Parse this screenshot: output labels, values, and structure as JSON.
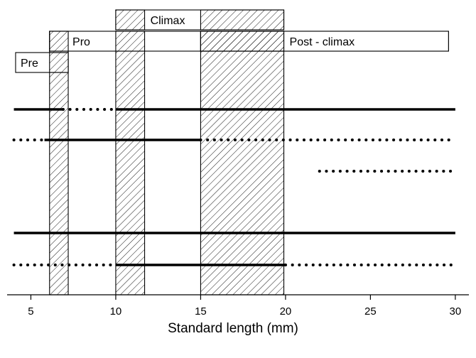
{
  "chart_data": {
    "type": "timeline",
    "xlabel": "Standard length (mm)",
    "xlim": [
      3.6,
      30.8
    ],
    "x_ticks": [
      5,
      10,
      15,
      20,
      25,
      30
    ],
    "x_tick_labels": [
      "5",
      "10",
      "15",
      "20",
      "25",
      "30"
    ],
    "grid": false,
    "phases": [
      {
        "label": "Pre",
        "box_start": 4.1,
        "box_end": 7.2,
        "row": 3
      },
      {
        "label": "Pro",
        "box_start": 6.1,
        "box_end": 29.6,
        "row": 2,
        "label_end": 10.0
      },
      {
        "label": "Climax",
        "box_start": 10.0,
        "box_end": 19.9,
        "row": 1,
        "label_end": 15.0
      },
      {
        "label": "Post - climax",
        "box_start": 15.0,
        "box_end": 29.6,
        "row": 2
      }
    ],
    "transition_bands": [
      {
        "from": 6.1,
        "to": 7.2
      },
      {
        "from": 10.0,
        "to": 11.7
      },
      {
        "from": 15.0,
        "to": 19.9
      }
    ],
    "rows": [
      {
        "segments": [
          {
            "from": 4.0,
            "to": 6.9,
            "style": "solid"
          },
          {
            "from": 6.9,
            "to": 10.0,
            "style": "dotted"
          },
          {
            "from": 10.0,
            "to": 30.0,
            "style": "solid"
          }
        ]
      },
      {
        "segments": [
          {
            "from": 4.0,
            "to": 5.8,
            "style": "dotted"
          },
          {
            "from": 5.8,
            "to": 15.0,
            "style": "solid"
          },
          {
            "from": 15.0,
            "to": 30.0,
            "style": "dotted"
          }
        ]
      },
      {
        "segments": [
          {
            "from": 22.0,
            "to": 29.8,
            "style": "dotted"
          }
        ]
      },
      {
        "segments": []
      },
      {
        "segments": [
          {
            "from": 4.0,
            "to": 30.0,
            "style": "solid"
          }
        ]
      },
      {
        "segments": [
          {
            "from": 4.0,
            "to": 10.0,
            "style": "dotted"
          },
          {
            "from": 10.0,
            "to": 20.0,
            "style": "solid"
          },
          {
            "from": 20.0,
            "to": 30.0,
            "style": "dotted"
          }
        ]
      }
    ]
  }
}
